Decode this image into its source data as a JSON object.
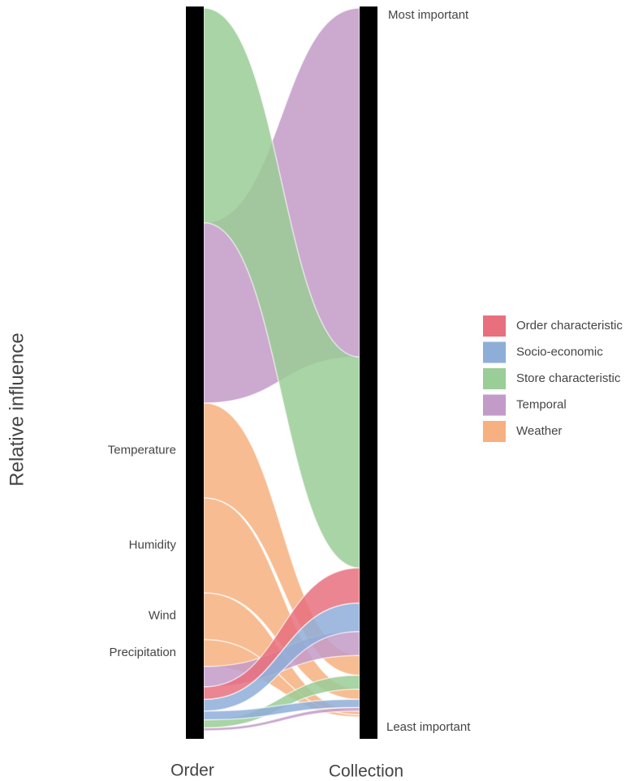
{
  "chart_data": {
    "type": "alluvial",
    "y_label": "Relative influence",
    "axes": [
      "Order",
      "Collection"
    ],
    "top_label": "Most important",
    "bottom_label": "Least important",
    "series": [
      {
        "name": "Order characteristic",
        "color": "#e8707e",
        "labels": [
          null
        ],
        "order": [
          1.7
        ],
        "collection": [
          4.8
        ],
        "order_rank": [
          8
        ],
        "collection_rank": [
          3
        ]
      },
      {
        "name": "Socio-economic",
        "color": "#8eaed8",
        "labels": [
          null,
          null
        ],
        "order": [
          1.6,
          1.2
        ],
        "collection": [
          3.9,
          1.1
        ],
        "order_rank": [
          9,
          10
        ],
        "collection_rank": [
          4,
          9
        ]
      },
      {
        "name": "Store characteristic",
        "color": "#9acd97",
        "labels": [
          null,
          null
        ],
        "order": [
          29.4,
          1.1
        ],
        "collection": [
          28.9,
          1.9
        ],
        "order_rank": [
          1,
          11
        ],
        "collection_rank": [
          2,
          7
        ]
      },
      {
        "name": "Temporal",
        "color": "#c39bc8",
        "labels": [
          null,
          null,
          null
        ],
        "order": [
          24.7,
          2.8,
          0.4
        ],
        "collection": [
          47.8,
          3.3,
          0.5
        ],
        "order_rank": [
          2,
          7,
          12
        ],
        "collection_rank": [
          1,
          5,
          10
        ]
      },
      {
        "name": "Weather",
        "color": "#f7b07f",
        "labels": [
          "Temperature",
          "Humidity",
          "Wind",
          "Precipitation"
        ],
        "order": [
          13,
          13,
          6.4,
          3.7
        ],
        "collection": [
          2.7,
          1.4,
          0.5,
          0.3
        ],
        "order_rank": [
          3,
          4,
          5,
          6
        ],
        "collection_rank": [
          6,
          8,
          11,
          12
        ]
      }
    ]
  }
}
